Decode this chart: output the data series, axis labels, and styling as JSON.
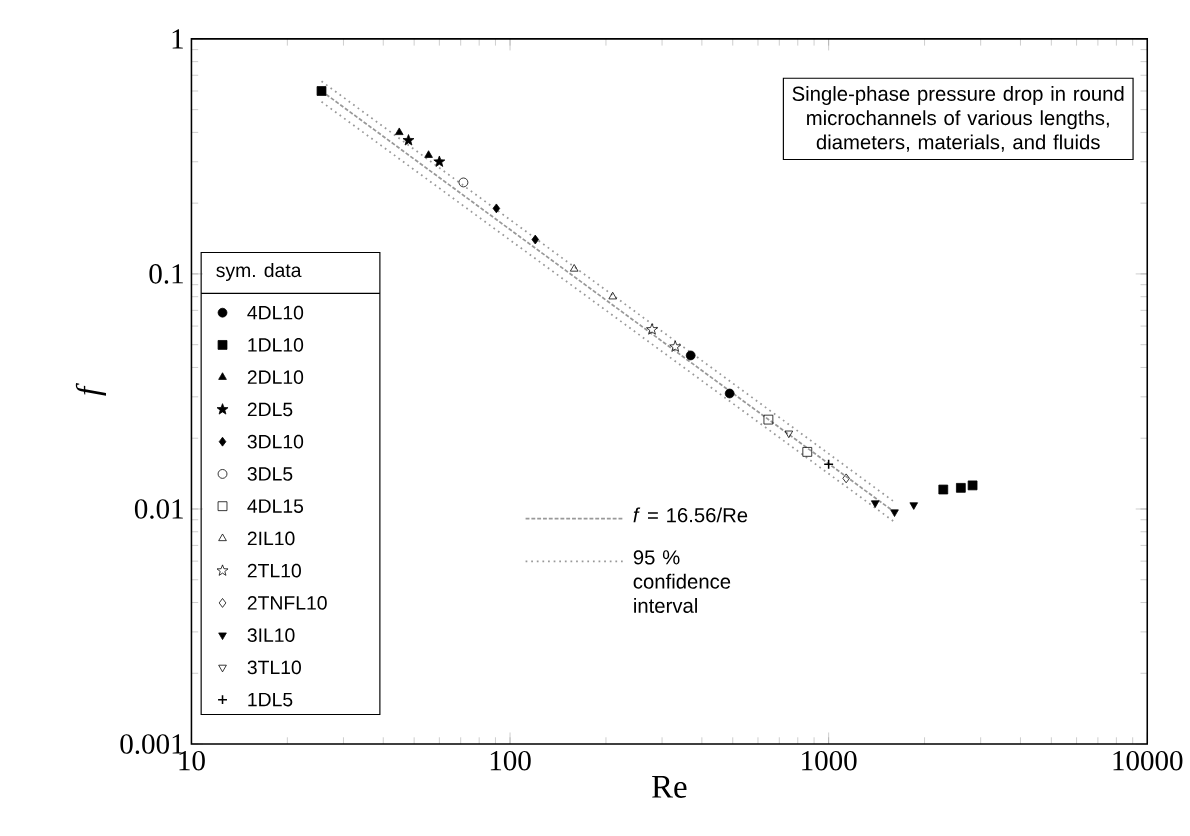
{
  "chart_data": {
    "type": "scatter",
    "xlabel": "Re",
    "ylabel": "f",
    "log": "xy",
    "xlim": [
      10,
      10000
    ],
    "ylim": [
      0.001,
      1
    ],
    "xticks": [
      10,
      100,
      1000,
      10000
    ],
    "yticks": [
      0.001,
      0.01,
      0.1,
      1
    ],
    "legend": "left",
    "legend_title": "sym.   data",
    "annotations": [
      "Single-phase pressure drop in round microchannels of various lengths, diameters, materials, and fluids"
    ],
    "series": [
      {
        "name": "4DL10",
        "color": "#000000",
        "marker": "circle",
        "x": [
          369,
          489
        ],
        "values": [
          0.045,
          0.031
        ]
      },
      {
        "name": "1DL10",
        "color": "#000000",
        "marker": "square",
        "x": [
          25.6,
          2290,
          2600,
          2830
        ],
        "values": [
          0.6,
          0.0121,
          0.0123,
          0.0126
        ]
      },
      {
        "name": "2DL10",
        "color": "#000000",
        "marker": "triangle",
        "x": [
          44.9,
          55.5
        ],
        "values": [
          0.4,
          0.32
        ]
      },
      {
        "name": "2DL5",
        "color": "#000000",
        "marker": "star",
        "x": [
          48,
          60
        ],
        "values": [
          0.37,
          0.3
        ]
      },
      {
        "name": "3DL10",
        "color": "#000000",
        "marker": "diamond",
        "x": [
          90.6,
          120
        ],
        "values": [
          0.19,
          0.14
        ]
      },
      {
        "name": "3DL5",
        "color": "#000000",
        "marker": "circle-open",
        "x": [
          71.4
        ],
        "values": [
          0.245
        ]
      },
      {
        "name": "4DL15",
        "color": "#000000",
        "marker": "square-open",
        "x": [
          647,
          857
        ],
        "values": [
          0.024,
          0.0175
        ]
      },
      {
        "name": "2IL10",
        "color": "#000000",
        "marker": "triangle-open",
        "x": [
          159,
          210
        ],
        "values": [
          0.105,
          0.08
        ]
      },
      {
        "name": "2TL10",
        "color": "#000000",
        "marker": "star-open",
        "x": [
          279,
          330
        ],
        "values": [
          0.058,
          0.049
        ]
      },
      {
        "name": "2TNFL10",
        "color": "#000000",
        "marker": "diamond-open",
        "x": [
          1135
        ],
        "values": [
          0.0135
        ]
      },
      {
        "name": "3IL10",
        "color": "#000000",
        "marker": "triangle-down",
        "x": [
          1400,
          1610,
          1850
        ],
        "values": [
          0.0106,
          0.0097,
          0.0104
        ]
      },
      {
        "name": "3TL10",
        "color": "#000000",
        "marker": "triangle-down-open",
        "x": [
          750
        ],
        "values": [
          0.021
        ]
      },
      {
        "name": "1DL5",
        "color": "#000000",
        "marker": "cross",
        "x": [
          1000
        ],
        "values": [
          0.0155
        ]
      },
      {
        "name": "*f* = 16.56/Re",
        "type": "line",
        "line_style": "dashed",
        "color": "#999999",
        "marker": "none",
        "x": [
          25.6,
          1610
        ],
        "values": [
          0.6,
          0.0097
        ]
      },
      {
        "name": "95 % confidence interval",
        "type": "line",
        "line_style": "dotted",
        "color": "#999999",
        "marker": "none",
        "x": [
          25.6,
          1610
        ],
        "values": [
          0.66,
          0.0107
        ]
      },
      {
        "type": "line",
        "line_style": "dotted",
        "color": "#999999",
        "marker": "none",
        "x": [
          25.6,
          1610
        ],
        "values": [
          0.54,
          0.0088
        ]
      }
    ]
  }
}
